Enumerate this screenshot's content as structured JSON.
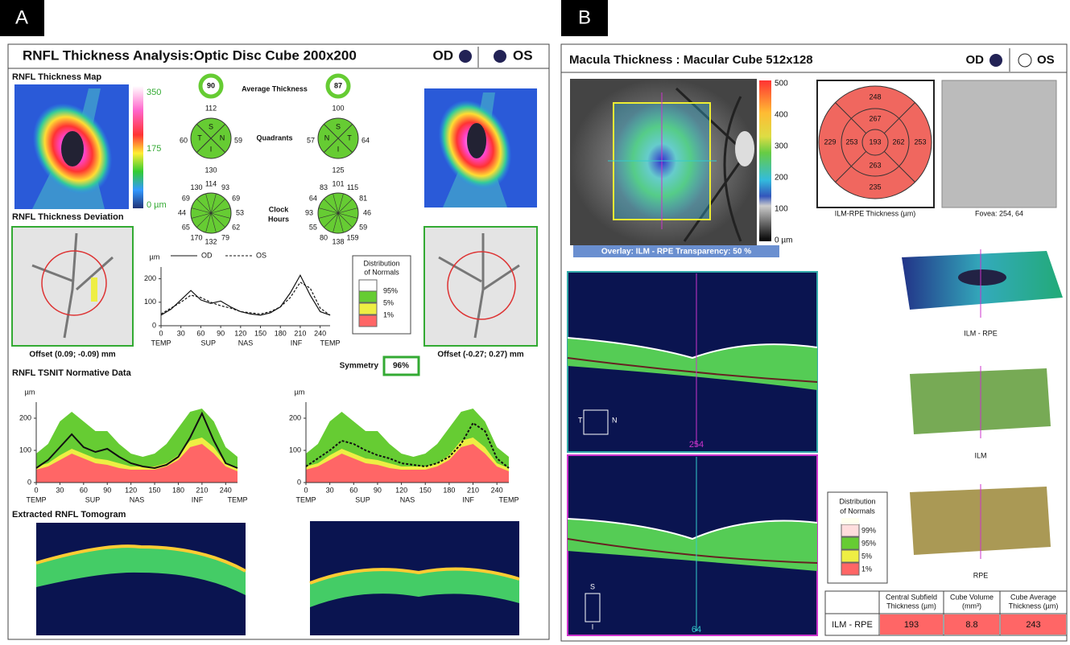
{
  "panel_a": {
    "label": "A",
    "title": "RNFL Thickness Analysis:Optic Disc Cube 200x200",
    "od": "OD",
    "os": "OS",
    "map_title": "RNFL Thickness Map",
    "map_scale": [
      "350",
      "175",
      "0 µm"
    ],
    "average_label": "Average Thickness",
    "average_od": 90,
    "average_os": 87,
    "quadrants_label": "Quadrants",
    "quadrants_od": {
      "values": [
        112,
        60,
        59,
        130
      ],
      "letters": [
        "S",
        "T",
        "N",
        "I"
      ]
    },
    "quadrants_os": {
      "values": [
        100,
        57,
        64,
        125
      ],
      "letters": [
        "S",
        "N",
        "T",
        "I"
      ]
    },
    "clock_label": [
      "Clock",
      "Hours"
    ],
    "clock_od": [
      114,
      93,
      69,
      53,
      62,
      79,
      132,
      170,
      65,
      44,
      69,
      130
    ],
    "clock_os": [
      101,
      115,
      81,
      46,
      59,
      159,
      138,
      80,
      55,
      93,
      64,
      83
    ],
    "deviation_title": "RNFL Thickness Deviation",
    "offset_od": "Offset (0.09; -0.09) mm",
    "offset_os": "Offset (-0.27; 0.27) mm",
    "distribution": {
      "title": [
        "Distribution",
        "of Normals"
      ],
      "levels": [
        "95%",
        "5%",
        "1%"
      ]
    },
    "symmetry_label": "Symmetry",
    "symmetry": "96%",
    "tsnit": {
      "unit": "µm",
      "legend_od": "OD",
      "legend_os": "OS",
      "x": [
        0,
        15,
        30,
        45,
        60,
        75,
        90,
        105,
        120,
        135,
        150,
        165,
        180,
        195,
        210,
        225,
        240,
        255
      ],
      "od": [
        45,
        70,
        110,
        150,
        110,
        95,
        105,
        80,
        60,
        50,
        45,
        55,
        80,
        140,
        215,
        130,
        60,
        45
      ],
      "os": [
        50,
        75,
        100,
        130,
        120,
        100,
        85,
        75,
        60,
        55,
        50,
        60,
        80,
        120,
        185,
        160,
        75,
        45
      ],
      "xlim": [
        0,
        255
      ],
      "ylim": [
        0,
        250
      ],
      "xticks": [
        0,
        30,
        60,
        90,
        120,
        150,
        180,
        210,
        240
      ],
      "yticks": [
        0,
        100,
        200
      ],
      "regions": [
        "TEMP",
        "SUP",
        "NAS",
        "INF",
        "TEMP"
      ]
    },
    "normative_title": "RNFL TSNIT Normative Data",
    "normative": {
      "p1": [
        40,
        50,
        70,
        90,
        75,
        60,
        55,
        45,
        40,
        40,
        40,
        50,
        70,
        110,
        120,
        90,
        50,
        35
      ],
      "p5": [
        50,
        60,
        85,
        105,
        90,
        75,
        70,
        60,
        50,
        50,
        50,
        60,
        85,
        130,
        140,
        110,
        60,
        45
      ],
      "p95": [
        90,
        120,
        190,
        220,
        190,
        160,
        160,
        120,
        90,
        80,
        90,
        120,
        170,
        220,
        230,
        190,
        110,
        80
      ]
    },
    "tomogram_title": "Extracted RNFL Tomogram"
  },
  "panel_b": {
    "label": "B",
    "title": "Macula Thickness : Macular Cube 512x128",
    "od": "OD",
    "os": "OS",
    "scale": [
      "500",
      "400",
      "300",
      "200",
      "100",
      "0 µm"
    ],
    "overlay": "Overlay: ILM - RPE  Transparency: 50 %",
    "grid": {
      "outer": [
        248,
        253,
        235,
        229
      ],
      "inner": [
        267,
        262,
        263,
        253
      ],
      "center": 193
    },
    "grid_caption": "ILM-RPE Thickness (µm)",
    "fovea_caption": "Fovea: 254, 64",
    "scan_h": "254",
    "scan_v": "64",
    "orient_h": [
      "T",
      "N"
    ],
    "orient_v": [
      "S",
      "I"
    ],
    "surfaces": [
      "ILM - RPE",
      "ILM",
      "RPE"
    ],
    "distribution": {
      "title": [
        "Distribution",
        "of Normals"
      ],
      "levels": [
        "99%",
        "95%",
        "5%",
        "1%"
      ]
    },
    "table": {
      "headers": [
        [
          "Central Subfield",
          "Thickness (µm)"
        ],
        [
          "Cube Volume",
          "(mm³)"
        ],
        [
          "Cube Average",
          "Thickness (µm)"
        ]
      ],
      "row": [
        "ILM - RPE",
        193,
        8.8,
        243
      ]
    }
  }
}
